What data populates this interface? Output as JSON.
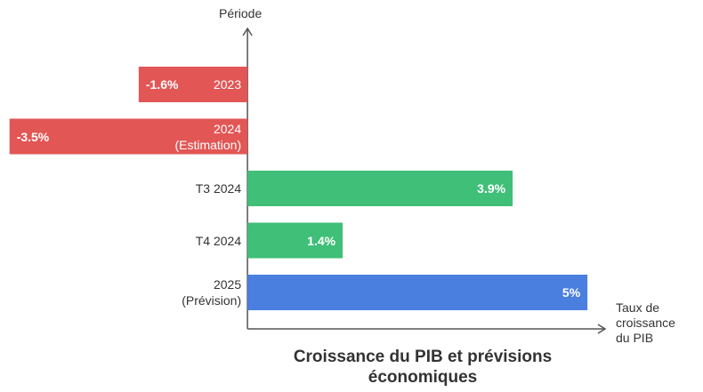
{
  "chart_data": {
    "type": "bar",
    "orientation": "horizontal",
    "title": "Croissance du PIB et prévisions économiques",
    "xlabel": "Taux de croissance du PIB",
    "ylabel": "Période",
    "categories": [
      "2023",
      "2024\n(Estimation)",
      "T3 2024",
      "T4 2024",
      "2025\n(Prévision)"
    ],
    "values": [
      -1.6,
      -3.5,
      3.9,
      1.4,
      5
    ],
    "value_labels": [
      "-1.6%",
      "-3.5%",
      "3.9%",
      "1.4%",
      "5%"
    ],
    "colors": [
      "#e25656",
      "#e25656",
      "#3fbf78",
      "#3fbf78",
      "#4a7fe0"
    ],
    "xlim": [
      -3.64,
      5.26
    ]
  }
}
